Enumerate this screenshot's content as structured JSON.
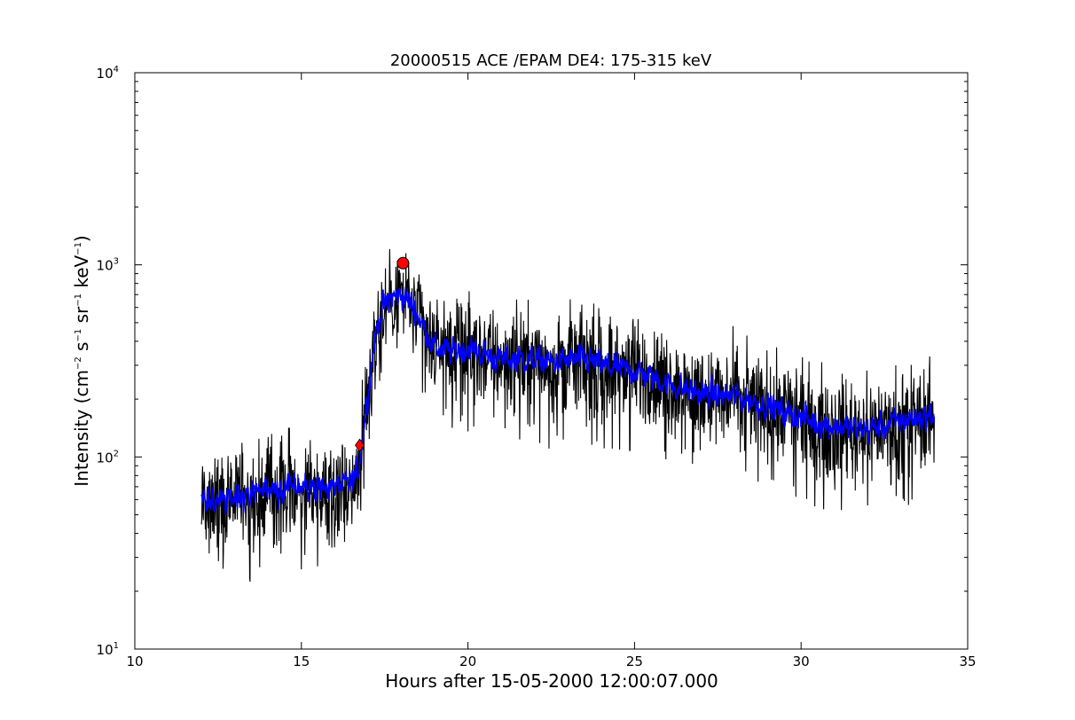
{
  "chart_data": {
    "type": "line",
    "title": "20000515 ACE /EPAM DE4: 175-315 keV",
    "xlabel": "Hours after 15-05-2000 12:00:07.000",
    "ylabel": "Intensity (cm$^{-2}$ s$^{-1}$ sr$^{-1}$ keV$^{-1}$)",
    "ylabel_parts": {
      "a": "Intensity (cm",
      "b": "−2",
      "c": " s",
      "d": "−1",
      "e": " sr",
      "f": "−1",
      "g": " keV",
      "h": "−1",
      "i": ")"
    },
    "xlim": [
      10,
      35
    ],
    "ylim": [
      10,
      10000
    ],
    "yscale": "log",
    "grid": false,
    "x_ticks": [
      "10",
      "15",
      "20",
      "25",
      "30",
      "35"
    ],
    "y_ticks": [
      {
        "base": "10",
        "exp": "1"
      },
      {
        "base": "10",
        "exp": "2"
      },
      {
        "base": "10",
        "exp": "3"
      },
      {
        "base": "10",
        "exp": "4"
      }
    ],
    "series": [
      {
        "color": "#000000",
        "style": "raw",
        "noise": 0.13,
        "dips": true,
        "x": [
          12.0,
          12.5,
          13.0,
          13.5,
          14.0,
          14.5,
          15.0,
          15.5,
          16.0,
          16.5,
          16.7,
          16.85,
          17.0,
          17.2,
          17.4,
          17.6,
          17.8,
          18.0,
          18.3,
          18.6,
          19.0,
          19.5,
          20.0,
          20.5,
          21.0,
          21.5,
          22.0,
          22.5,
          23.0,
          23.5,
          24.0,
          24.5,
          25.0,
          25.5,
          26.0,
          26.5,
          27.0,
          27.5,
          28.0,
          28.5,
          29.0,
          29.5,
          30.0,
          30.5,
          31.0,
          31.5,
          32.0,
          32.5,
          33.0,
          33.5,
          34.0
        ],
        "y": [
          60,
          58,
          62,
          63,
          65,
          68,
          70,
          69,
          70,
          72,
          85,
          130,
          220,
          400,
          580,
          650,
          680,
          700,
          630,
          500,
          370,
          350,
          370,
          340,
          320,
          325,
          320,
          310,
          320,
          320,
          300,
          290,
          280,
          260,
          240,
          225,
          215,
          210,
          205,
          195,
          185,
          170,
          160,
          150,
          145,
          140,
          140,
          145,
          155,
          160,
          165
        ]
      },
      {
        "color": "#0000ff",
        "style": "smooth",
        "noise": 0.06,
        "dips": false,
        "x": [
          12.0,
          12.5,
          13.0,
          13.5,
          14.0,
          14.5,
          15.0,
          15.5,
          16.0,
          16.5,
          16.7,
          16.85,
          17.0,
          17.2,
          17.4,
          17.6,
          17.8,
          18.0,
          18.3,
          18.6,
          19.0,
          19.5,
          20.0,
          20.5,
          21.0,
          21.5,
          22.0,
          22.5,
          23.0,
          23.5,
          24.0,
          24.5,
          25.0,
          25.5,
          26.0,
          26.5,
          27.0,
          27.5,
          28.0,
          28.5,
          29.0,
          29.5,
          30.0,
          30.5,
          31.0,
          31.5,
          32.0,
          32.5,
          33.0,
          33.5,
          34.0
        ],
        "y": [
          60,
          58,
          62,
          63,
          65,
          68,
          70,
          69,
          70,
          72,
          85,
          130,
          220,
          400,
          580,
          650,
          680,
          700,
          630,
          500,
          370,
          350,
          370,
          340,
          320,
          325,
          320,
          310,
          320,
          320,
          300,
          290,
          280,
          260,
          240,
          225,
          215,
          210,
          205,
          195,
          185,
          170,
          160,
          150,
          145,
          140,
          140,
          145,
          155,
          160,
          165
        ]
      }
    ],
    "markers": [
      {
        "shape": "diamond",
        "color": "#ff0000",
        "x": 16.75,
        "y": 115
      },
      {
        "shape": "circle",
        "color": "#ff0000",
        "x": 18.05,
        "y": 1020
      }
    ]
  }
}
